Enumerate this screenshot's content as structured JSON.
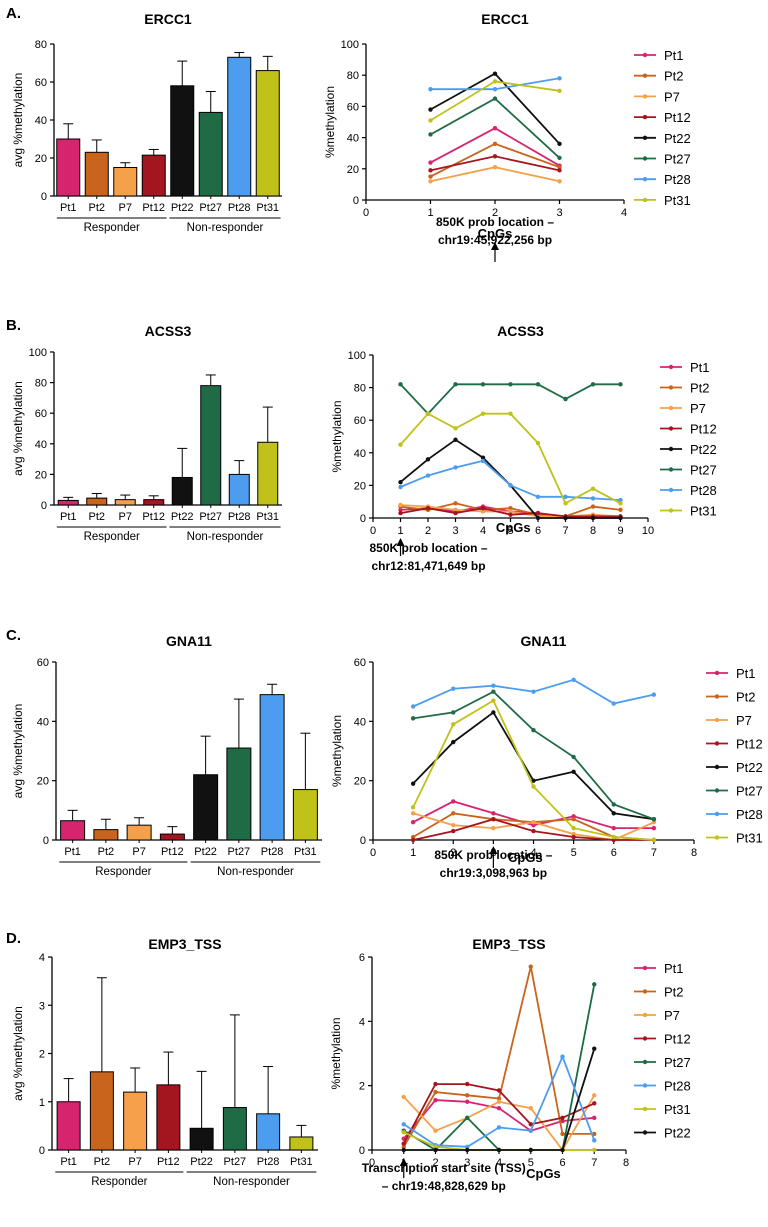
{
  "figure": {
    "group_labels": [
      "Responder",
      "Non-responder"
    ],
    "bar_ylabel": "avg %methylation",
    "line_ylabel": "%methylation",
    "line_xlabel": "CpGs"
  },
  "colors": {
    "Pt1": "#d6246e",
    "Pt2": "#c8641c",
    "P7": "#f5a04a",
    "Pt12": "#a4161f",
    "Pt22": "#111111",
    "Pt27": "#1f6b45",
    "Pt28": "#4c9cf0",
    "Pt31": "#c0c21a"
  },
  "chart_data": [
    {
      "panel": "A.",
      "type": "bar",
      "title": "ERCC1",
      "ylabel": "avg %methylation",
      "ylim": [
        0,
        80
      ],
      "yticks": [
        0,
        20,
        40,
        60,
        80
      ],
      "categories": [
        "Pt1",
        "Pt2",
        "P7",
        "Pt12",
        "Pt22",
        "Pt27",
        "Pt28",
        "Pt31"
      ],
      "values": [
        30,
        23,
        15,
        21.5,
        58,
        44,
        73,
        66
      ],
      "errors": [
        8,
        6.5,
        2.5,
        3,
        13,
        11,
        2.5,
        7.5
      ]
    },
    {
      "panel": "A.",
      "type": "line",
      "title": "ERCC1",
      "xlabel": "CpGs",
      "ylabel": "%methylation",
      "xlim": [
        0,
        4
      ],
      "ylim": [
        0,
        100
      ],
      "xticks": [
        0,
        1,
        2,
        3,
        4
      ],
      "yticks": [
        0,
        20,
        40,
        60,
        80,
        100
      ],
      "x": [
        1,
        2,
        3
      ],
      "annotation": [
        "850K prob location –",
        "chr19:45,922,256 bp"
      ],
      "annotation_x": 2,
      "series": [
        {
          "name": "Pt1",
          "values": [
            24,
            46,
            22
          ]
        },
        {
          "name": "Pt2",
          "values": [
            15,
            36,
            21
          ]
        },
        {
          "name": "P7",
          "values": [
            12,
            21,
            12
          ]
        },
        {
          "name": "Pt12",
          "values": [
            19,
            28,
            19
          ]
        },
        {
          "name": "Pt22",
          "values": [
            58,
            81,
            36
          ]
        },
        {
          "name": "Pt27",
          "values": [
            42,
            65,
            27
          ]
        },
        {
          "name": "Pt28",
          "values": [
            71,
            71,
            78
          ]
        },
        {
          "name": "Pt31",
          "values": [
            51,
            76,
            70
          ]
        }
      ]
    },
    {
      "panel": "B.",
      "type": "bar",
      "title": "ACSS3",
      "ylabel": "avg %methylation",
      "ylim": [
        0,
        100
      ],
      "yticks": [
        0,
        20,
        40,
        60,
        80,
        100
      ],
      "categories": [
        "Pt1",
        "Pt2",
        "P7",
        "Pt12",
        "Pt22",
        "Pt27",
        "Pt28",
        "Pt31"
      ],
      "values": [
        3,
        4.5,
        3.5,
        3.5,
        18,
        78,
        20,
        41
      ],
      "errors": [
        2,
        3,
        3,
        2.5,
        19,
        7,
        9,
        23
      ]
    },
    {
      "panel": "B.",
      "type": "line",
      "title": "ACSS3",
      "xlabel": "CpGs",
      "ylabel": "%methylation",
      "xlim": [
        0,
        10
      ],
      "ylim": [
        0,
        100
      ],
      "xticks": [
        0,
        1,
        2,
        3,
        4,
        5,
        6,
        7,
        8,
        9,
        10
      ],
      "yticks": [
        0,
        20,
        40,
        60,
        80,
        100
      ],
      "x": [
        1,
        2,
        3,
        4,
        5,
        6,
        7,
        8,
        9
      ],
      "annotation": [
        "850K prob location –",
        "chr12:81,471,649 bp"
      ],
      "annotation_x": 1,
      "series": [
        {
          "name": "Pt1",
          "values": [
            5,
            6,
            4,
            7,
            4,
            3,
            0,
            0,
            0
          ]
        },
        {
          "name": "Pt2",
          "values": [
            7,
            5,
            9,
            5,
            6,
            2,
            1,
            7,
            5
          ]
        },
        {
          "name": "P7",
          "values": [
            8,
            7,
            5,
            4,
            4,
            1,
            1,
            2,
            1
          ]
        },
        {
          "name": "Pt12",
          "values": [
            3,
            6,
            3,
            6,
            2,
            3,
            1,
            1,
            1
          ]
        },
        {
          "name": "Pt22",
          "values": [
            22,
            36,
            48,
            37,
            20,
            0,
            0,
            0,
            0
          ]
        },
        {
          "name": "Pt27",
          "values": [
            82,
            64,
            82,
            82,
            82,
            82,
            73,
            82,
            82
          ]
        },
        {
          "name": "Pt28",
          "values": [
            19,
            26,
            31,
            35,
            20,
            13,
            13,
            12,
            11
          ]
        },
        {
          "name": "Pt31",
          "values": [
            45,
            64,
            55,
            64,
            64,
            46,
            9,
            18,
            9
          ]
        }
      ]
    },
    {
      "panel": "C.",
      "type": "bar",
      "title": "GNA11",
      "ylabel": "avg %methylation",
      "ylim": [
        0,
        60
      ],
      "yticks": [
        0,
        20,
        40,
        60
      ],
      "categories": [
        "Pt1",
        "Pt2",
        "P7",
        "Pt12",
        "Pt22",
        "Pt27",
        "Pt28",
        "Pt31"
      ],
      "values": [
        6.5,
        3.5,
        5,
        2,
        22,
        31,
        49,
        17
      ],
      "errors": [
        3.5,
        3.5,
        2.5,
        2.5,
        13,
        16.5,
        3.5,
        19
      ]
    },
    {
      "panel": "C.",
      "type": "line",
      "title": "GNA11",
      "xlabel": "CpGs",
      "ylabel": "%methylation",
      "xlim": [
        0,
        8
      ],
      "ylim": [
        0,
        60
      ],
      "xticks": [
        0,
        1,
        2,
        3,
        4,
        5,
        6,
        7,
        8
      ],
      "yticks": [
        0,
        20,
        40,
        60
      ],
      "x": [
        1,
        2,
        3,
        4,
        5,
        6,
        7
      ],
      "annotation": [
        "850K prob location –",
        "chr19:3,098,963 bp"
      ],
      "annotation_x": 3,
      "series": [
        {
          "name": "Pt1",
          "values": [
            6,
            13,
            9,
            5,
            8,
            4,
            4
          ]
        },
        {
          "name": "Pt2",
          "values": [
            1,
            9,
            7,
            6,
            7,
            1,
            0
          ]
        },
        {
          "name": "P7",
          "values": [
            9,
            5,
            4,
            6,
            2,
            0,
            6
          ]
        },
        {
          "name": "Pt12",
          "values": [
            0,
            3,
            7,
            3,
            1,
            0,
            0
          ]
        },
        {
          "name": "Pt22",
          "values": [
            19,
            33,
            43,
            20,
            23,
            9,
            7
          ]
        },
        {
          "name": "Pt27",
          "values": [
            41,
            43,
            50,
            37,
            28,
            12,
            7
          ]
        },
        {
          "name": "Pt28",
          "values": [
            45,
            51,
            52,
            50,
            54,
            46,
            49
          ]
        },
        {
          "name": "Pt31",
          "values": [
            11,
            39,
            47,
            18,
            4,
            1,
            0
          ]
        }
      ]
    },
    {
      "panel": "D.",
      "type": "bar",
      "title": "EMP3_TSS",
      "ylabel": "avg %methylation",
      "ylim": [
        0,
        4
      ],
      "yticks": [
        0,
        1,
        2,
        3,
        4
      ],
      "categories": [
        "Pt1",
        "Pt2",
        "P7",
        "Pt12",
        "Pt22",
        "Pt27",
        "Pt28",
        "Pt31"
      ],
      "values": [
        1.0,
        1.62,
        1.2,
        1.35,
        0.45,
        0.88,
        0.75,
        0.27
      ],
      "errors": [
        0.48,
        1.95,
        0.5,
        0.68,
        1.18,
        1.92,
        0.98,
        0.24
      ]
    },
    {
      "panel": "D.",
      "type": "line",
      "title": "EMP3_TSS",
      "xlabel": "CpGs",
      "ylabel": "%methylation",
      "xlim": [
        0,
        8
      ],
      "ylim": [
        0,
        6
      ],
      "xticks": [
        0,
        1,
        2,
        3,
        4,
        5,
        6,
        7,
        8
      ],
      "yticks": [
        0,
        2,
        4,
        6
      ],
      "x": [
        1,
        2,
        3,
        4,
        5,
        6,
        7
      ],
      "annotation": [
        "Transcription start site (TSS)",
        "– chr19:48,828,629 bp"
      ],
      "annotation_x": 1,
      "series": [
        {
          "name": "Pt1",
          "values": [
            0.35,
            1.55,
            1.5,
            1.3,
            0.6,
            0.9,
            1.0
          ]
        },
        {
          "name": "Pt2",
          "values": [
            0.1,
            1.8,
            1.7,
            1.6,
            5.7,
            0.5,
            0.5
          ]
        },
        {
          "name": "P7",
          "values": [
            1.65,
            0.6,
            1.0,
            1.5,
            1.3,
            0.0,
            1.7
          ]
        },
        {
          "name": "Pt12",
          "values": [
            0.2,
            2.05,
            2.05,
            1.85,
            0.8,
            1.0,
            1.45
          ]
        },
        {
          "name": "Pt27",
          "values": [
            0.6,
            0.0,
            1.0,
            0.0,
            0.0,
            0.0,
            5.15
          ]
        },
        {
          "name": "Pt28",
          "values": [
            0.8,
            0.15,
            0.1,
            0.7,
            0.6,
            2.9,
            0.3
          ]
        },
        {
          "name": "Pt31",
          "values": [
            0.55,
            0.1,
            0.0,
            0.0,
            0.0,
            0.0,
            0.0
          ]
        },
        {
          "name": "Pt22",
          "values": [
            0.0,
            0.0,
            0.0,
            0.0,
            0.0,
            0.0,
            3.15
          ]
        }
      ]
    }
  ]
}
